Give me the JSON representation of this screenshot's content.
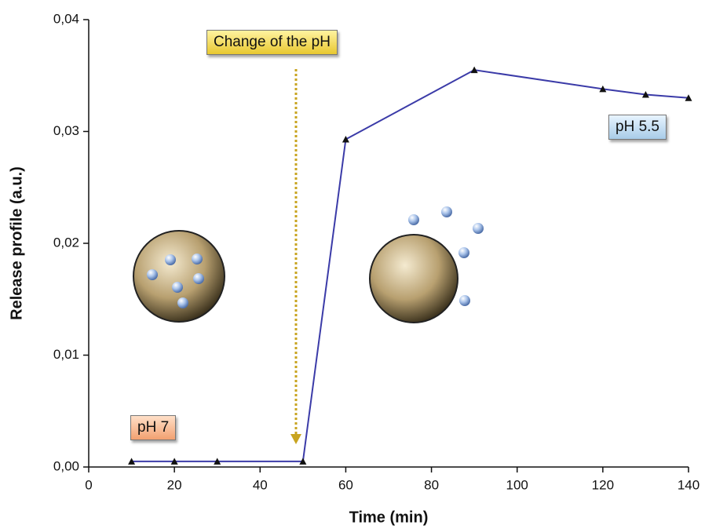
{
  "chart_data": {
    "type": "line",
    "x_label": "Time (min)",
    "y_label": "Release profile (a.u.)",
    "x": [
      10,
      20,
      30,
      50,
      60,
      90,
      120,
      130,
      140
    ],
    "series": [
      {
        "color": "#3b3ba8",
        "marker_color": "#111111",
        "values": [
          0.0005,
          0.0005,
          0.0005,
          0.0005,
          0.0293,
          0.0355,
          0.0338,
          0.0333,
          0.033
        ]
      }
    ],
    "xlim": [
      0,
      140
    ],
    "xticks": [
      0,
      20,
      40,
      60,
      80,
      100,
      120,
      140
    ],
    "ylim": [
      0,
      0.04
    ],
    "yticks": [
      {
        "value": 0,
        "label": "0,00"
      },
      {
        "value": 0.01,
        "label": "0,01"
      },
      {
        "value": 0.02,
        "label": "0,02"
      },
      {
        "value": 0.03,
        "label": "0,03"
      },
      {
        "value": 0.04,
        "label": "0,04"
      }
    ],
    "annotations": [
      "Change of the pH",
      "pH 7",
      "pH 5.5"
    ]
  }
}
